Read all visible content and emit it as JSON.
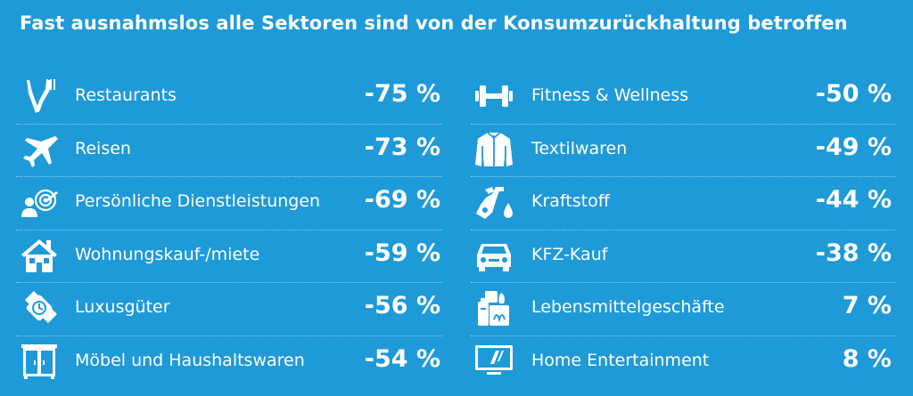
{
  "title": "Fast ausnahmslos alle Sektoren sind von der Konsumzurückhaltung betroffen",
  "colors": {
    "background": "#1e9ad8",
    "text": "#ffffff"
  },
  "chart_data": {
    "type": "table",
    "title": "Fast ausnahmslos alle Sektoren sind von der Konsumzurückhaltung betroffen",
    "unit": "%",
    "left": [
      {
        "category": "Restaurants",
        "value": -75,
        "display": "-75 %",
        "icon": "cutlery-icon"
      },
      {
        "category": "Reisen",
        "value": -73,
        "display": "-73 %",
        "icon": "airplane-icon"
      },
      {
        "category": "Persönliche Dienstleistungen",
        "value": -69,
        "display": "-69 %",
        "icon": "person-target-icon"
      },
      {
        "category": "Wohnungskauf-/miete",
        "value": -59,
        "display": "-59 %",
        "icon": "house-icon"
      },
      {
        "category": "Luxusgüter",
        "value": -56,
        "display": "-56 %",
        "icon": "watch-icon"
      },
      {
        "category": "Möbel und Haushaltswaren",
        "value": -54,
        "display": "-54 %",
        "icon": "cabinet-icon"
      }
    ],
    "right": [
      {
        "category": "Fitness & Wellness",
        "value": -50,
        "display": "-50 %",
        "icon": "dumbbell-icon"
      },
      {
        "category": "Textilwaren",
        "value": -49,
        "display": "-49 %",
        "icon": "jacket-icon"
      },
      {
        "category": "Kraftstoff",
        "value": -44,
        "display": "-44 %",
        "icon": "fuel-nozzle-icon"
      },
      {
        "category": "KFZ-Kauf",
        "value": -38,
        "display": "-38 %",
        "icon": "car-icon"
      },
      {
        "category": "Lebensmittelgeschäfte",
        "value": 7,
        "display": "7 %",
        "icon": "groceries-icon"
      },
      {
        "category": "Home Entertainment",
        "value": 8,
        "display": "8 %",
        "icon": "tv-icon"
      }
    ]
  }
}
